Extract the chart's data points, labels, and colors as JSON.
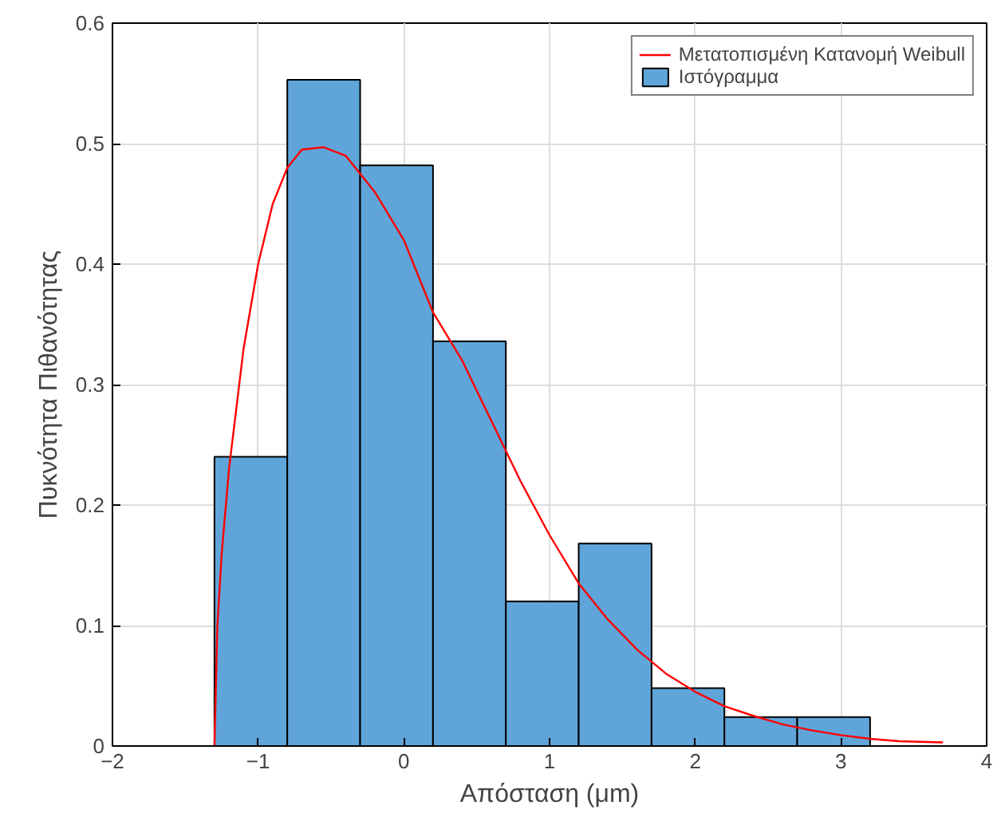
{
  "chart_data": {
    "type": "histogram",
    "xlabel": "Απόσταση (μm)",
    "ylabel": "Πυκνότητα Πιθανότητας",
    "xlim": [
      -2,
      4
    ],
    "ylim": [
      0,
      0.6
    ],
    "xticks": [
      -2,
      -1,
      0,
      1,
      2,
      3,
      4
    ],
    "yticks": [
      0,
      0.1,
      0.2,
      0.3,
      0.4,
      0.5,
      0.6
    ],
    "grid": true,
    "legend": "top right",
    "series": [
      {
        "name": "Μετατοπισμένη Κατανομή Weibull",
        "type": "line",
        "color": "#ff0000",
        "x": [
          -1.3,
          -1.28,
          -1.25,
          -1.2,
          -1.1,
          -1.0,
          -0.9,
          -0.8,
          -0.7,
          -0.55,
          -0.4,
          -0.2,
          0,
          0.2,
          0.4,
          0.6,
          0.8,
          1.0,
          1.2,
          1.4,
          1.6,
          1.8,
          2.0,
          2.2,
          2.4,
          2.6,
          2.8,
          3.0,
          3.2,
          3.4,
          3.7
        ],
        "values": [
          0,
          0.1,
          0.16,
          0.23,
          0.33,
          0.4,
          0.45,
          0.48,
          0.495,
          0.497,
          0.49,
          0.46,
          0.42,
          0.36,
          0.32,
          0.27,
          0.22,
          0.175,
          0.135,
          0.105,
          0.08,
          0.06,
          0.045,
          0.033,
          0.025,
          0.018,
          0.013,
          0.009,
          0.006,
          0.004,
          0.003
        ]
      },
      {
        "name": "Ιστόγραμμα",
        "color": "#5fa5d9",
        "bins": [
          -1.3,
          -0.8,
          -0.3,
          0.2,
          0.7,
          1.2,
          1.7,
          2.2,
          2.7,
          3.2
        ],
        "values": [
          0.24,
          0.553,
          0.482,
          0.336,
          0.12,
          0.168,
          0.048,
          0.024,
          0.024
        ]
      }
    ]
  }
}
